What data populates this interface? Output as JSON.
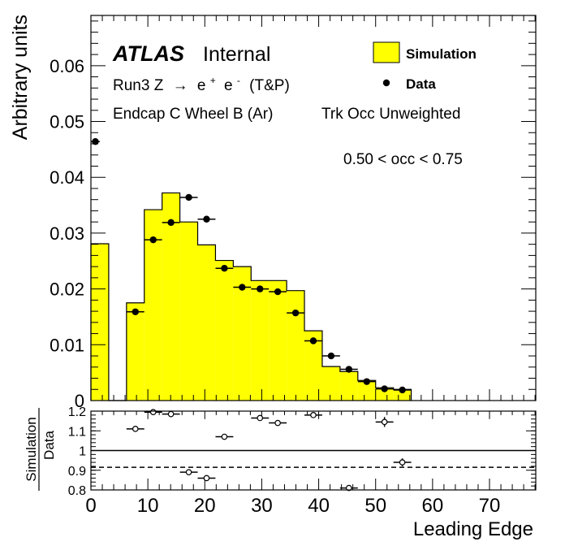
{
  "chart_data": {
    "type": "histogram",
    "experiment": "ATLAS",
    "status": "Internal",
    "annotations": {
      "line1_prefix": "Run3 Z",
      "line1_arrow": "→",
      "line1_particles": [
        "e",
        "+",
        "e",
        "-"
      ],
      "line1_suffix": "(T&P)",
      "line2": "Endcap C Wheel B (Ar)",
      "line3": "Trk Occ Unweighted",
      "line4": "0.50 < occ < 0.75"
    },
    "legend": {
      "placement": "top-right",
      "simulation": "Simulation",
      "data": "Data"
    },
    "colors": {
      "simulation_fill": "#ffff00",
      "line": "#000000"
    },
    "main": {
      "ylabel": "Arbitrary units",
      "xlim": [
        0,
        78.125
      ],
      "ylim": [
        0,
        0.069
      ],
      "yticks": [
        0,
        0.01,
        0.02,
        0.03,
        0.04,
        0.05,
        0.06
      ],
      "ytick_labels": [
        "0",
        "0.01",
        "0.02",
        "0.03",
        "0.04",
        "0.05",
        "0.06"
      ],
      "bin_width": 3.125,
      "simulation": {
        "name": "Simulation",
        "bin_low_edges": [
          0,
          3.125,
          6.25,
          9.375,
          12.5,
          15.625,
          18.75,
          21.875,
          25,
          28.125,
          31.25,
          34.375,
          37.5,
          40.625,
          43.75,
          46.875,
          50,
          53.125
        ],
        "values": [
          0.0281,
          0,
          0.0175,
          0.0342,
          0.0372,
          0.032,
          0.0279,
          0.0251,
          0.024,
          0.0215,
          0.0215,
          0.0197,
          0.0125,
          0.0061,
          0.0052,
          0.0036,
          0.0023,
          0.002
        ]
      },
      "data": {
        "name": "Data",
        "x": [
          0.78,
          7.81,
          10.94,
          14.06,
          17.19,
          20.31,
          23.44,
          26.56,
          29.69,
          32.81,
          35.94,
          39.06,
          42.19,
          45.31,
          48.44,
          51.56,
          54.69
        ],
        "y": [
          0.0464,
          0.0159,
          0.0288,
          0.0319,
          0.0364,
          0.0325,
          0.0237,
          0.0203,
          0.02,
          0.0195,
          0.0157,
          0.0107,
          0.008,
          0.0056,
          0.0034,
          0.0021,
          0.0019
        ],
        "xerr": [
          0.78,
          1.56,
          1.56,
          1.56,
          1.56,
          1.56,
          1.56,
          1.56,
          1.56,
          1.56,
          1.56,
          1.56,
          1.56,
          1.56,
          1.56,
          1.56,
          1.56
        ]
      }
    },
    "ratio": {
      "ylabel_numerator": "Simulation",
      "ylabel_denominator": "Data",
      "ylim": [
        0.8,
        1.2
      ],
      "yticks": [
        0.8,
        0.9,
        1.0,
        1.1,
        1.2
      ],
      "ytick_labels": [
        "0.8",
        "0.9",
        "1",
        "1.1",
        "1.2"
      ],
      "reference_line": 1.0,
      "dashed_line": 0.915,
      "x": [
        7.81,
        10.94,
        14.06,
        17.19,
        20.31,
        23.44,
        29.69,
        32.81,
        39.06,
        45.31,
        51.56,
        54.69
      ],
      "y": [
        1.11,
        1.195,
        1.185,
        0.89,
        0.86,
        1.07,
        1.165,
        1.14,
        1.18,
        0.81,
        1.145,
        0.94
      ],
      "xerr": [
        1.56,
        1.56,
        1.56,
        1.56,
        1.56,
        1.56,
        1.56,
        1.56,
        1.56,
        1.56,
        1.56,
        1.56
      ],
      "yerr": [
        0,
        0,
        0,
        0,
        0,
        0,
        0,
        0,
        0,
        0,
        0.025,
        0.02
      ]
    },
    "xaxis": {
      "label": "Leading Edge",
      "ticks": [
        0,
        10,
        20,
        30,
        40,
        50,
        60,
        70
      ],
      "tick_labels": [
        "0",
        "10",
        "20",
        "30",
        "40",
        "50",
        "60",
        "70"
      ]
    }
  }
}
